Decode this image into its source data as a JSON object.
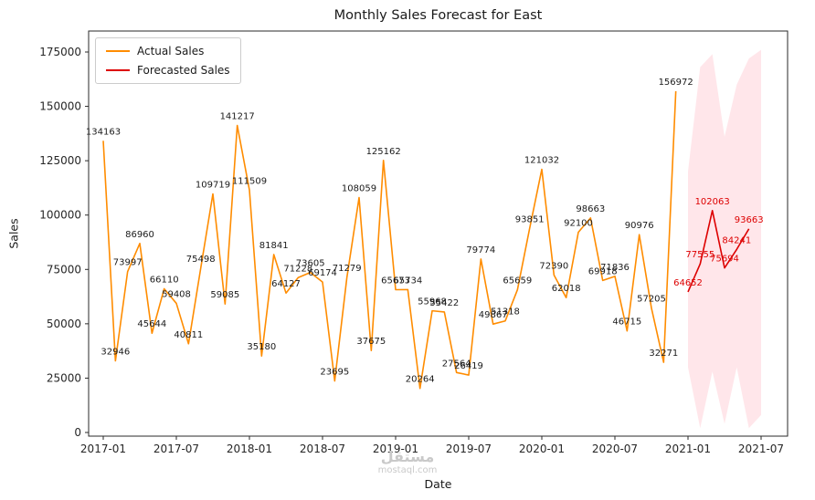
{
  "chart_data": {
    "type": "line",
    "title": "Monthly Sales Forecast for East",
    "xlabel": "Date",
    "ylabel": "Sales",
    "x_ticks": [
      "2017-01",
      "2017-07",
      "2018-01",
      "2018-07",
      "2019-01",
      "2019-07",
      "2020-01",
      "2020-07",
      "2021-01",
      "2021-07"
    ],
    "y_ticks": [
      0,
      25000,
      50000,
      75000,
      100000,
      125000,
      150000,
      175000
    ],
    "ylim": [
      0,
      175000
    ],
    "grid": false,
    "legend_position": "upper-left",
    "legend": [
      {
        "label": "Actual Sales",
        "color": "#ff8c00"
      },
      {
        "label": "Forecasted Sales",
        "color": "#dd0000"
      }
    ],
    "series": [
      {
        "name": "Actual Sales",
        "color": "#ff8c00",
        "label_color": "#1a1a1a",
        "start_month": "2017-01",
        "values": [
          134163,
          32946,
          73997,
          86960,
          45644,
          66110,
          59408,
          40811,
          75498,
          109719,
          59085,
          141217,
          111509,
          35180,
          81841,
          64127,
          71228,
          73605,
          69174,
          23695,
          71279,
          108059,
          37675,
          125162,
          65673,
          65734,
          20264,
          55968,
          55422,
          27564,
          26419,
          79774,
          49867,
          51318,
          65659,
          93851,
          121032,
          72390,
          62018,
          92100,
          98663,
          69918,
          71836,
          46715,
          90976,
          57205,
          32271,
          156972
        ]
      },
      {
        "name": "Forecasted Sales",
        "color": "#dd0000",
        "label_color": "#dd0000",
        "start_month": "2021-01",
        "values": [
          64652,
          77555,
          102063,
          75694,
          84241,
          93663
        ]
      }
    ],
    "forecast_band": {
      "start_month": "2021-01",
      "upper": [
        120000,
        168000,
        174000,
        136000,
        160000,
        172000,
        176000
      ],
      "lower": [
        30000,
        2000,
        28000,
        4000,
        30000,
        2000,
        8000
      ],
      "color": "#ff4d6a",
      "opacity": 0.14
    }
  },
  "watermark": {
    "arabic": "مستقل",
    "domain": "mostaql.com"
  }
}
